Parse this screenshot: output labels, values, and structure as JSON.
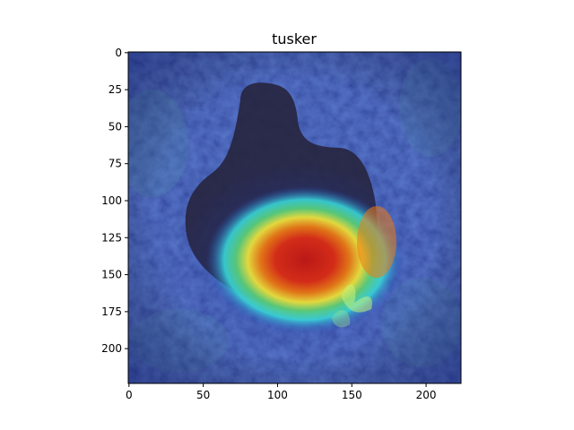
{
  "figure": {
    "title": "tusker"
  },
  "image_axes": {
    "x_ticks": [
      "0",
      "50",
      "100",
      "150",
      "200"
    ],
    "x_tick_values": [
      0,
      50,
      100,
      150,
      200
    ],
    "y_ticks": [
      "0",
      "25",
      "50",
      "75",
      "100",
      "125",
      "150",
      "175",
      "200"
    ],
    "y_tick_values": [
      0,
      25,
      50,
      75,
      100,
      125,
      150,
      175,
      200
    ],
    "x_range": [
      -0.5,
      223.5
    ],
    "y_range": [
      -0.5,
      223.5
    ]
  },
  "image": {
    "subject": "dark animal silhouette in foliage with Grad-CAM heatmap overlay",
    "colors": {
      "overlay_base": "#1f2f9a",
      "foliage": "#3a5a8a",
      "subject_dark": "#26223a",
      "heat_red": "#e02010",
      "heat_orange": "#f07a10",
      "heat_yellow": "#f2e63a",
      "heat_cyan": "#38d2d6",
      "heat_green": "#5ad27a"
    }
  }
}
